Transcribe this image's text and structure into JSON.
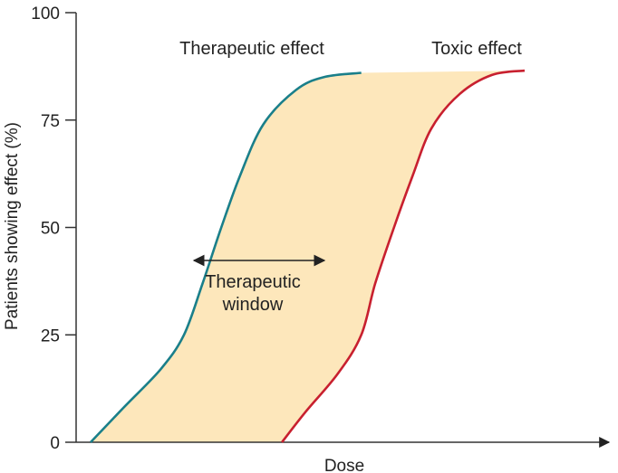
{
  "chart_data": {
    "type": "line",
    "title": "",
    "xlabel": "Dose",
    "ylabel": "Patients showing effect (%)",
    "ylim": [
      0,
      100
    ],
    "yticks": [
      0,
      25,
      50,
      75,
      100
    ],
    "grid": false,
    "series": [
      {
        "name": "Therapeutic effect",
        "color": "#1a7f8a",
        "points": [
          [
            0.0,
            0
          ],
          [
            0.07,
            8
          ],
          [
            0.15,
            17
          ],
          [
            0.2,
            25
          ],
          [
            0.24,
            37
          ],
          [
            0.28,
            50
          ],
          [
            0.32,
            62
          ],
          [
            0.37,
            74
          ],
          [
            0.44,
            82
          ],
          [
            0.5,
            85
          ],
          [
            0.58,
            86
          ]
        ]
      },
      {
        "name": "Toxic effect",
        "color": "#c8202f",
        "points": [
          [
            0.41,
            0
          ],
          [
            0.46,
            7
          ],
          [
            0.53,
            16
          ],
          [
            0.58,
            25
          ],
          [
            0.61,
            37
          ],
          [
            0.65,
            50
          ],
          [
            0.69,
            62
          ],
          [
            0.73,
            73
          ],
          [
            0.79,
            81
          ],
          [
            0.86,
            85.5
          ],
          [
            0.93,
            86.5
          ]
        ]
      }
    ],
    "shaded_region": {
      "label": "Therapeutic window",
      "color": "#fde7bb"
    },
    "annotations": {
      "therapeutic_label": "Therapeutic effect",
      "toxic_label": "Toxic effect",
      "window_label_line1": "Therapeutic",
      "window_label_line2": "window"
    }
  }
}
